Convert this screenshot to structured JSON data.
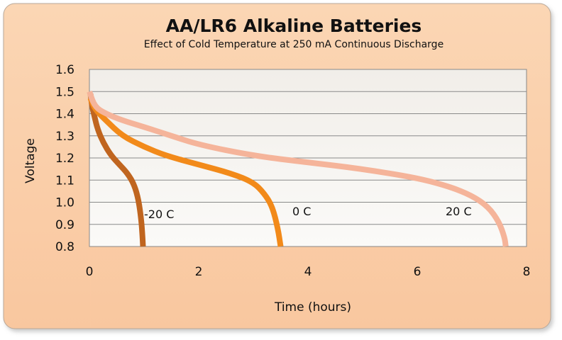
{
  "chart_data": {
    "type": "line",
    "title": "AA/LR6 Alkaline Batteries",
    "subtitle": "Effect of Cold Temperature at 250 mA Continuous Discharge",
    "xlabel": "Time (hours)",
    "ylabel": "Voltage",
    "xlim": [
      0,
      8
    ],
    "ylim": [
      0.8,
      1.6
    ],
    "xticks": [
      "0",
      "2",
      "4",
      "6",
      "8"
    ],
    "yticks": [
      "0.8",
      "0.9",
      "1.0",
      "1.1",
      "1.2",
      "1.3",
      "1.4",
      "1.5",
      "1.6"
    ],
    "grid": "horizontal",
    "series": [
      {
        "name": "-20 C",
        "color": "#c0651f",
        "points": [
          [
            0.02,
            1.49
          ],
          [
            0.05,
            1.43
          ],
          [
            0.1,
            1.38
          ],
          [
            0.15,
            1.33
          ],
          [
            0.25,
            1.27
          ],
          [
            0.4,
            1.21
          ],
          [
            0.55,
            1.17
          ],
          [
            0.7,
            1.13
          ],
          [
            0.82,
            1.08
          ],
          [
            0.9,
            1.01
          ],
          [
            0.95,
            0.92
          ],
          [
            0.97,
            0.85
          ],
          [
            0.98,
            0.8
          ]
        ]
      },
      {
        "name": "0 C",
        "color": "#f28a1a",
        "points": [
          [
            0.02,
            1.47
          ],
          [
            0.1,
            1.42
          ],
          [
            0.3,
            1.37
          ],
          [
            0.6,
            1.3
          ],
          [
            1.0,
            1.25
          ],
          [
            1.4,
            1.21
          ],
          [
            2.0,
            1.17
          ],
          [
            2.6,
            1.13
          ],
          [
            3.0,
            1.09
          ],
          [
            3.2,
            1.04
          ],
          [
            3.35,
            0.98
          ],
          [
            3.45,
            0.88
          ],
          [
            3.5,
            0.8
          ]
        ]
      },
      {
        "name": "20 C",
        "color": "#f5b49a",
        "points": [
          [
            0.0,
            1.5
          ],
          [
            0.1,
            1.43
          ],
          [
            0.3,
            1.4
          ],
          [
            0.6,
            1.37
          ],
          [
            1.0,
            1.34
          ],
          [
            1.5,
            1.3
          ],
          [
            2.0,
            1.26
          ],
          [
            3.0,
            1.21
          ],
          [
            4.0,
            1.18
          ],
          [
            5.0,
            1.15
          ],
          [
            6.0,
            1.11
          ],
          [
            6.6,
            1.07
          ],
          [
            7.0,
            1.03
          ],
          [
            7.3,
            0.98
          ],
          [
            7.5,
            0.91
          ],
          [
            7.6,
            0.84
          ],
          [
            7.62,
            0.8
          ]
        ]
      }
    ]
  }
}
